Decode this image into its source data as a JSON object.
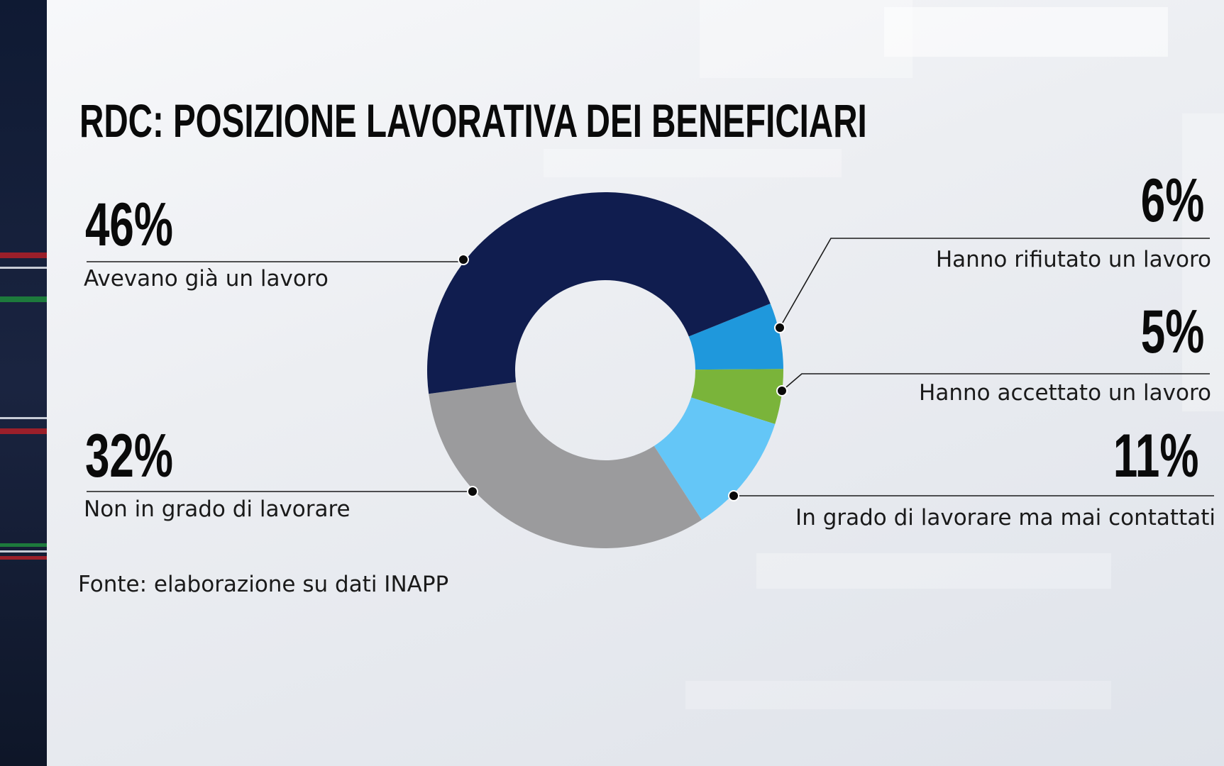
{
  "title": "RDC: POSIZIONE LAVORATIVA DEI BENEFICIARI",
  "source": "Fonte: elaborazione su dati  INAPP",
  "colors": {
    "navy": "#101d4f",
    "blue": "#1f98dc",
    "green": "#7ab43a",
    "light_blue": "#64c6f7",
    "gray": "#9b9b9d"
  },
  "labels": {
    "avevano": {
      "pct": "46%",
      "text": "Avevano già un lavoro"
    },
    "non_in_grado": {
      "pct": "32%",
      "text": "Non in grado di lavorare"
    },
    "rifiutato": {
      "pct": "6%",
      "text": "Hanno rifiutato un lavoro"
    },
    "accettato": {
      "pct": "5%",
      "text": "Hanno accettato un  lavoro"
    },
    "mai_contattati": {
      "pct": "11%",
      "text": "In grado di lavorare ma mai contattati"
    }
  },
  "chart_data": {
    "type": "pie",
    "title": "RDC: POSIZIONE LAVORATIVA DEI BENEFICIARI",
    "categories": [
      "Hanno rifiutato un lavoro",
      "Hanno accettato un  lavoro",
      "In grado di lavorare ma mai contattati",
      "Non in grado di lavorare",
      "Avevano già un lavoro"
    ],
    "values": [
      6,
      5,
      11,
      32,
      46
    ],
    "unit": "%",
    "donut": true
  }
}
